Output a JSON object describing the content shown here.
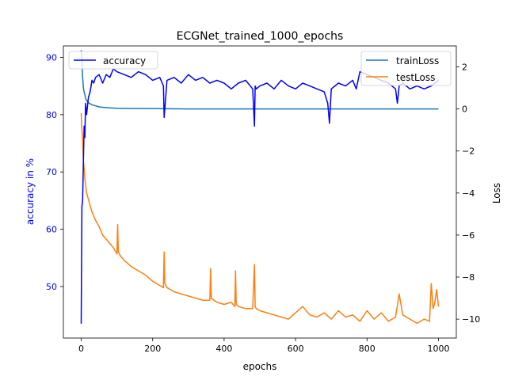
{
  "chart_data": {
    "type": "line",
    "title": "ECGNet_trained_1000_epochs",
    "xlabel": "epochs",
    "ylabel_left": "accuracy in %",
    "ylabel_right": "Loss",
    "xlim": [
      -50,
      1050
    ],
    "xticks": [
      0,
      200,
      400,
      600,
      800,
      1000
    ],
    "ylim_left": [
      41.0,
      92.0
    ],
    "yticks_left": [
      50,
      60,
      70,
      80,
      90
    ],
    "ylim_right": [
      -10.9,
      3.0
    ],
    "yticks_right": [
      -10,
      -8,
      -6,
      -4,
      -2,
      0,
      2
    ],
    "legend_left_position": "upper-left",
    "legend_right_position": "upper-right",
    "series": [
      {
        "name": "accuracy",
        "axis": "left",
        "color": "#0000ff",
        "x": [
          0,
          2,
          4,
          6,
          8,
          10,
          12,
          15,
          20,
          25,
          30,
          35,
          40,
          50,
          60,
          70,
          80,
          90,
          100,
          120,
          140,
          160,
          180,
          200,
          220,
          230,
          232,
          240,
          260,
          280,
          300,
          320,
          340,
          360,
          380,
          400,
          420,
          440,
          460,
          480,
          485,
          487,
          490,
          500,
          520,
          540,
          560,
          580,
          600,
          620,
          640,
          660,
          680,
          690,
          695,
          700,
          720,
          740,
          760,
          770,
          780,
          800,
          820,
          840,
          860,
          880,
          885,
          890,
          900,
          920,
          940,
          960,
          980,
          1000
        ],
        "y": [
          43.5,
          64,
          65,
          72,
          78,
          76,
          82,
          80,
          83,
          84,
          86,
          85.5,
          86.5,
          87,
          85.5,
          87,
          86.5,
          88,
          87.5,
          87,
          86.5,
          87.5,
          87,
          86,
          86.5,
          85,
          79.5,
          86,
          86.5,
          85.5,
          87,
          86,
          86.5,
          85.5,
          86,
          85.5,
          84.5,
          85.5,
          86,
          84.5,
          78,
          85,
          84.5,
          85,
          85.5,
          84.5,
          86,
          85,
          84.5,
          85.5,
          85,
          84.5,
          84,
          82,
          78.5,
          84.5,
          85.5,
          85,
          86,
          84.5,
          87.5,
          87,
          86.5,
          86,
          85.5,
          84.5,
          82,
          85,
          85.5,
          84.5,
          85,
          84.5,
          85,
          86
        ]
      },
      {
        "name": "trainLoss",
        "axis": "right",
        "color": "#1f77b4",
        "x": [
          0,
          2,
          4,
          6,
          8,
          10,
          12,
          15,
          20,
          25,
          30,
          40,
          50,
          60,
          80,
          100,
          150,
          200,
          300,
          400,
          500,
          600,
          700,
          800,
          900,
          1000
        ],
        "y": [
          2.8,
          2.3,
          1.5,
          1.0,
          0.8,
          0.7,
          0.5,
          0.4,
          0.3,
          0.25,
          0.2,
          0.15,
          0.1,
          0.08,
          0.05,
          0.03,
          0.02,
          0.02,
          0.0,
          0.0,
          0.0,
          0.0,
          0.0,
          0.0,
          0.0,
          0.0
        ]
      },
      {
        "name": "testLoss",
        "axis": "right",
        "color": "#ff7f0e",
        "x": [
          0,
          2,
          4,
          6,
          8,
          10,
          12,
          15,
          20,
          25,
          30,
          40,
          50,
          60,
          70,
          80,
          90,
          100,
          102,
          104,
          110,
          120,
          140,
          160,
          180,
          200,
          220,
          230,
          232,
          234,
          240,
          260,
          280,
          300,
          320,
          340,
          360,
          362,
          364,
          380,
          400,
          420,
          430,
          432,
          434,
          440,
          460,
          480,
          485,
          487,
          490,
          500,
          520,
          540,
          560,
          580,
          600,
          620,
          640,
          660,
          680,
          700,
          720,
          740,
          760,
          780,
          800,
          820,
          840,
          860,
          880,
          890,
          900,
          920,
          940,
          960,
          975,
          980,
          985,
          990,
          995,
          1000
        ],
        "y": [
          -0.2,
          -1.0,
          -1.5,
          -2.5,
          -2.8,
          -3.3,
          -3.6,
          -4.0,
          -4.3,
          -4.6,
          -4.9,
          -5.3,
          -5.6,
          -6.0,
          -6.2,
          -6.4,
          -6.6,
          -6.9,
          -5.5,
          -6.8,
          -7.0,
          -7.2,
          -7.5,
          -7.7,
          -7.9,
          -8.2,
          -8.4,
          -8.5,
          -6.8,
          -8.3,
          -8.5,
          -8.7,
          -8.8,
          -8.9,
          -9.0,
          -9.1,
          -9.1,
          -7.6,
          -9.0,
          -9.2,
          -9.3,
          -9.2,
          -9.4,
          -7.7,
          -9.3,
          -9.4,
          -9.5,
          -9.5,
          -7.4,
          -9.4,
          -9.5,
          -9.6,
          -9.7,
          -9.8,
          -9.9,
          -10.0,
          -9.7,
          -9.4,
          -9.8,
          -9.9,
          -9.7,
          -10.0,
          -9.6,
          -9.9,
          -9.8,
          -10.1,
          -9.6,
          -10.0,
          -9.7,
          -10.1,
          -9.9,
          -8.8,
          -9.8,
          -10.0,
          -10.2,
          -10.0,
          -10.1,
          -8.3,
          -9.5,
          -9.2,
          -8.6,
          -9.4
        ]
      }
    ]
  }
}
